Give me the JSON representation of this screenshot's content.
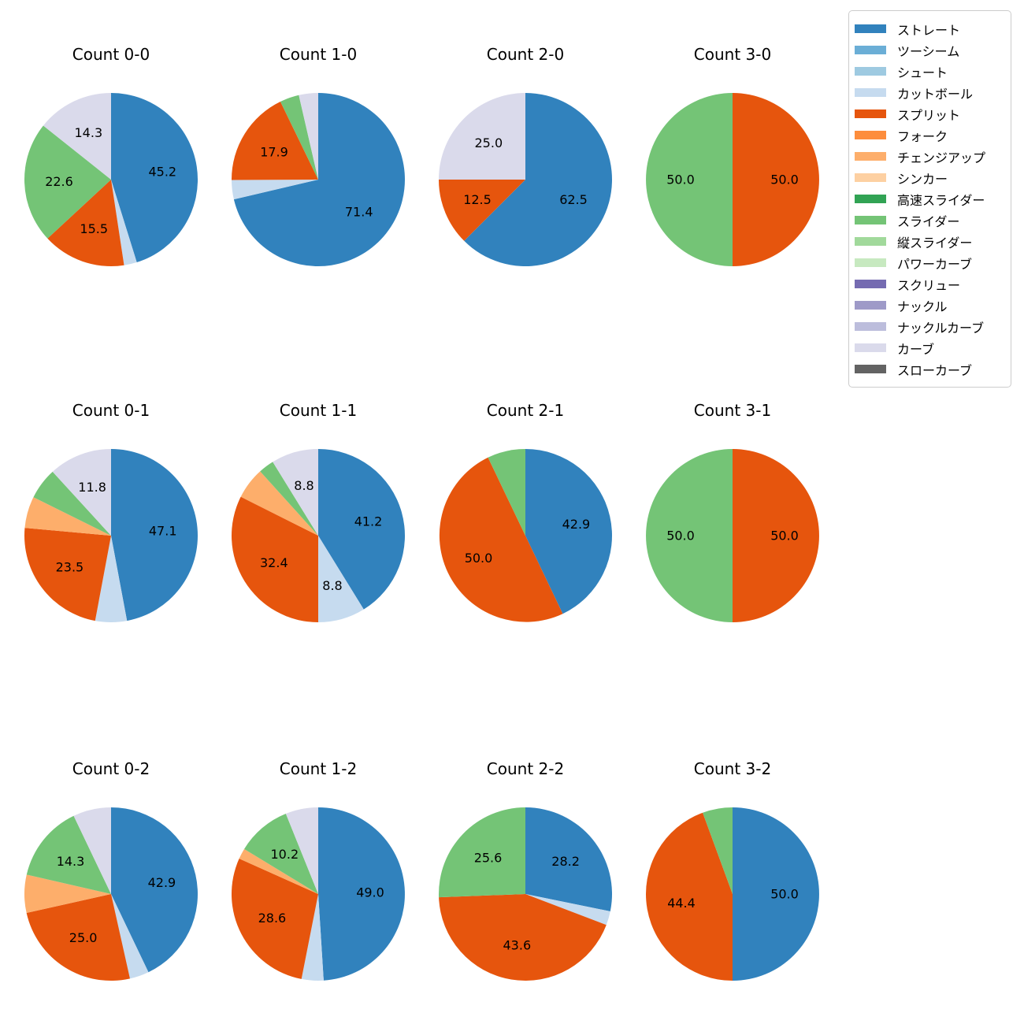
{
  "figure": {
    "background": "#ffffff"
  },
  "palette": {
    "ストレート": "#3182bd",
    "ツーシーム": "#6baed6",
    "シュート": "#9ecae1",
    "カットボール": "#c6dbef",
    "スプリット": "#e6550d",
    "フォーク": "#fd8d3c",
    "チェンジアップ": "#fdae6b",
    "シンカー": "#fdd0a2",
    "高速スライダー": "#31a354",
    "スライダー": "#74c476",
    "縦スライダー": "#a1d99b",
    "パワーカーブ": "#c7e9c0",
    "スクリュー": "#756bb1",
    "ナックル": "#9e9ac8",
    "ナックルカーブ": "#bcbddc",
    "カーブ": "#dadaeb",
    "スローカーブ": "#636363"
  },
  "legend": {
    "position": "upper right",
    "items": [
      "ストレート",
      "ツーシーム",
      "シュート",
      "カットボール",
      "スプリット",
      "フォーク",
      "チェンジアップ",
      "シンカー",
      "高速スライダー",
      "スライダー",
      "縦スライダー",
      "パワーカーブ",
      "スクリュー",
      "ナックル",
      "ナックルカーブ",
      "カーブ",
      "スローカーブ"
    ]
  },
  "chart_data": [
    {
      "type": "pie",
      "title": "Count 0-0",
      "start_angle_deg": 0,
      "direction": "clockwise",
      "slices": [
        {
          "name": "ストレート",
          "value": 45.2,
          "label": "45.2"
        },
        {
          "name": "カットボール",
          "value": 2.4,
          "label": null
        },
        {
          "name": "スプリット",
          "value": 15.5,
          "label": "15.5"
        },
        {
          "name": "スライダー",
          "value": 22.6,
          "label": "22.6"
        },
        {
          "name": "カーブ",
          "value": 14.3,
          "label": "14.3"
        }
      ]
    },
    {
      "type": "pie",
      "title": "Count 1-0",
      "start_angle_deg": 0,
      "direction": "clockwise",
      "slices": [
        {
          "name": "ストレート",
          "value": 71.4,
          "label": "71.4"
        },
        {
          "name": "カットボール",
          "value": 3.6,
          "label": null
        },
        {
          "name": "スプリット",
          "value": 17.9,
          "label": "17.9"
        },
        {
          "name": "スライダー",
          "value": 3.6,
          "label": null
        },
        {
          "name": "カーブ",
          "value": 3.6,
          "label": null
        }
      ]
    },
    {
      "type": "pie",
      "title": "Count 2-0",
      "start_angle_deg": 0,
      "direction": "clockwise",
      "slices": [
        {
          "name": "ストレート",
          "value": 62.5,
          "label": "62.5"
        },
        {
          "name": "スプリット",
          "value": 12.5,
          "label": "12.5"
        },
        {
          "name": "カーブ",
          "value": 25.0,
          "label": "25.0"
        }
      ]
    },
    {
      "type": "pie",
      "title": "Count 3-0",
      "start_angle_deg": 0,
      "direction": "clockwise",
      "slices": [
        {
          "name": "スプリット",
          "value": 50.0,
          "label": "50.0"
        },
        {
          "name": "スライダー",
          "value": 50.0,
          "label": "50.0"
        }
      ]
    },
    {
      "type": "pie",
      "title": "Count 0-1",
      "start_angle_deg": 0,
      "direction": "clockwise",
      "slices": [
        {
          "name": "ストレート",
          "value": 47.1,
          "label": "47.1"
        },
        {
          "name": "カットボール",
          "value": 5.9,
          "label": null
        },
        {
          "name": "スプリット",
          "value": 23.5,
          "label": "23.5"
        },
        {
          "name": "チェンジアップ",
          "value": 5.9,
          "label": null
        },
        {
          "name": "スライダー",
          "value": 5.9,
          "label": null
        },
        {
          "name": "カーブ",
          "value": 11.8,
          "label": "11.8"
        }
      ]
    },
    {
      "type": "pie",
      "title": "Count 1-1",
      "start_angle_deg": 0,
      "direction": "clockwise",
      "slices": [
        {
          "name": "ストレート",
          "value": 41.2,
          "label": "41.2"
        },
        {
          "name": "カットボール",
          "value": 8.8,
          "label": "8.8"
        },
        {
          "name": "スプリット",
          "value": 32.4,
          "label": "32.4"
        },
        {
          "name": "チェンジアップ",
          "value": 5.9,
          "label": null
        },
        {
          "name": "スライダー",
          "value": 2.9,
          "label": null
        },
        {
          "name": "カーブ",
          "value": 8.8,
          "label": "8.8"
        }
      ]
    },
    {
      "type": "pie",
      "title": "Count 2-1",
      "start_angle_deg": 0,
      "direction": "clockwise",
      "slices": [
        {
          "name": "ストレート",
          "value": 42.9,
          "label": "42.9"
        },
        {
          "name": "スプリット",
          "value": 50.0,
          "label": "50.0"
        },
        {
          "name": "スライダー",
          "value": 7.1,
          "label": null
        }
      ]
    },
    {
      "type": "pie",
      "title": "Count 3-1",
      "start_angle_deg": 0,
      "direction": "clockwise",
      "slices": [
        {
          "name": "スプリット",
          "value": 50.0,
          "label": "50.0"
        },
        {
          "name": "スライダー",
          "value": 50.0,
          "label": "50.0"
        }
      ]
    },
    {
      "type": "pie",
      "title": "Count 0-2",
      "start_angle_deg": 0,
      "direction": "clockwise",
      "slices": [
        {
          "name": "ストレート",
          "value": 42.9,
          "label": "42.9"
        },
        {
          "name": "カットボール",
          "value": 3.6,
          "label": null
        },
        {
          "name": "スプリット",
          "value": 25.0,
          "label": "25.0"
        },
        {
          "name": "チェンジアップ",
          "value": 7.1,
          "label": null
        },
        {
          "name": "スライダー",
          "value": 14.3,
          "label": "14.3"
        },
        {
          "name": "カーブ",
          "value": 7.1,
          "label": null
        }
      ]
    },
    {
      "type": "pie",
      "title": "Count 1-2",
      "start_angle_deg": 0,
      "direction": "clockwise",
      "slices": [
        {
          "name": "ストレート",
          "value": 49.0,
          "label": "49.0"
        },
        {
          "name": "カットボール",
          "value": 4.1,
          "label": null
        },
        {
          "name": "スプリット",
          "value": 28.6,
          "label": "28.6"
        },
        {
          "name": "チェンジアップ",
          "value": 2.0,
          "label": null
        },
        {
          "name": "スライダー",
          "value": 10.2,
          "label": "10.2"
        },
        {
          "name": "カーブ",
          "value": 6.1,
          "label": null
        }
      ]
    },
    {
      "type": "pie",
      "title": "Count 2-2",
      "start_angle_deg": 0,
      "direction": "clockwise",
      "slices": [
        {
          "name": "ストレート",
          "value": 28.2,
          "label": "28.2"
        },
        {
          "name": "カットボール",
          "value": 2.6,
          "label": null
        },
        {
          "name": "スプリット",
          "value": 43.6,
          "label": "43.6"
        },
        {
          "name": "スライダー",
          "value": 25.6,
          "label": "25.6"
        }
      ]
    },
    {
      "type": "pie",
      "title": "Count 3-2",
      "start_angle_deg": 0,
      "direction": "clockwise",
      "slices": [
        {
          "name": "ストレート",
          "value": 50.0,
          "label": "50.0"
        },
        {
          "name": "スプリット",
          "value": 44.4,
          "label": "44.4"
        },
        {
          "name": "スライダー",
          "value": 5.6,
          "label": null
        }
      ]
    }
  ]
}
